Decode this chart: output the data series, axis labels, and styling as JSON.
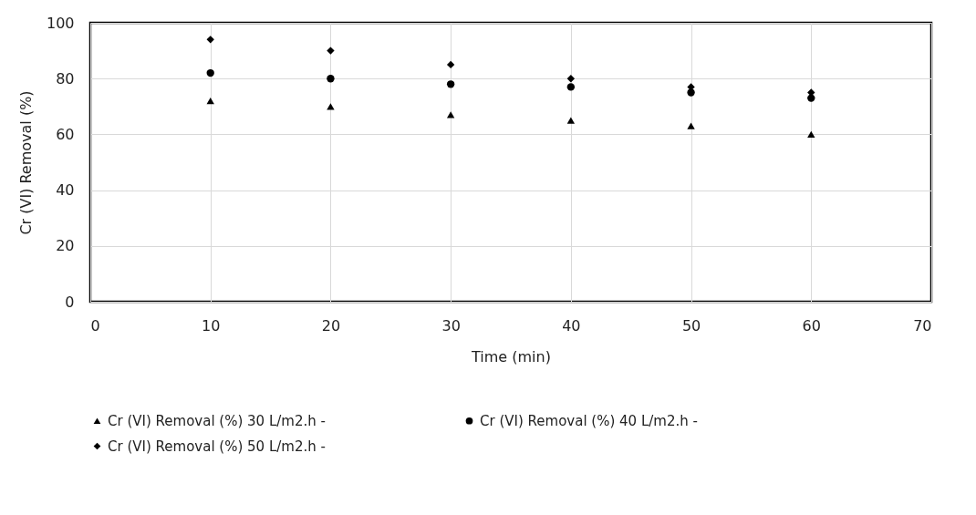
{
  "chart_data": {
    "type": "scatter",
    "xlabel": "Time (min)",
    "ylabel": "Cr (VI) Removal (%)",
    "x": [
      10,
      20,
      30,
      40,
      50,
      60
    ],
    "series": [
      {
        "name": "Cr (VI) Removal (%) 30 L/m2.h -",
        "color": "#000000",
        "marker": "triangle",
        "values": [
          72,
          70,
          67,
          65,
          63,
          60
        ]
      },
      {
        "name": "Cr (VI) Removal (%) 40 L/m2.h -",
        "color": "#000000",
        "marker": "circle",
        "values": [
          82,
          80,
          78,
          77,
          75,
          73
        ]
      },
      {
        "name": "Cr (VI) Removal (%) 50 L/m2.h -",
        "color": "#000000",
        "marker": "diamond",
        "values": [
          94,
          90,
          85,
          80,
          77,
          75
        ]
      }
    ],
    "xlim": [
      0,
      70
    ],
    "xticks": [
      0,
      10,
      20,
      30,
      40,
      50,
      60,
      70
    ],
    "ylim": [
      0,
      100
    ],
    "yticks": [
      0,
      20,
      40,
      60,
      80,
      100
    ],
    "grid": true,
    "legend": "bottom"
  }
}
